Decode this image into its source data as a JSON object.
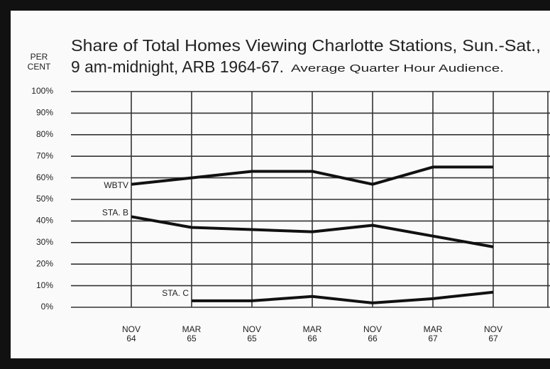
{
  "chart_data": {
    "type": "line",
    "title_lines": [
      "Share of Total Homes Viewing Charlotte Stations, Sun.-Sat.,",
      "9 am-midnight, ARB 1964-67."
    ],
    "subtitle": "Average Quarter Hour Audience.",
    "y_label_lines": [
      "PER",
      "CENT"
    ],
    "categories": [
      "NOV\n64",
      "MAR\n65",
      "NOV\n65",
      "MAR\n66",
      "NOV\n66",
      "MAR\n67",
      "NOV\n67"
    ],
    "series": [
      {
        "name": "WBTV",
        "color": "#111111",
        "values": [
          57,
          60,
          63,
          63,
          57,
          65,
          65
        ]
      },
      {
        "name": "STA. B",
        "color": "#111111",
        "values": [
          42,
          37,
          36,
          35,
          38,
          33,
          28
        ]
      },
      {
        "name": "STA. C",
        "color": "#111111",
        "values": [
          null,
          3,
          3,
          5,
          2,
          4,
          7
        ]
      }
    ],
    "ylim": [
      0,
      100
    ],
    "yticks": [
      {
        "value": 0,
        "label": "0%"
      },
      {
        "value": 10,
        "label": "10%"
      },
      {
        "value": 20,
        "label": "20%"
      },
      {
        "value": 30,
        "label": "30%"
      },
      {
        "value": 40,
        "label": "40%"
      },
      {
        "value": 50,
        "label": "50%"
      },
      {
        "value": 60,
        "label": "60%"
      },
      {
        "value": 70,
        "label": "70%"
      },
      {
        "value": 80,
        "label": "80%"
      },
      {
        "value": 90,
        "label": "90%"
      },
      {
        "value": 100,
        "label": "100%"
      }
    ],
    "grid": true
  }
}
